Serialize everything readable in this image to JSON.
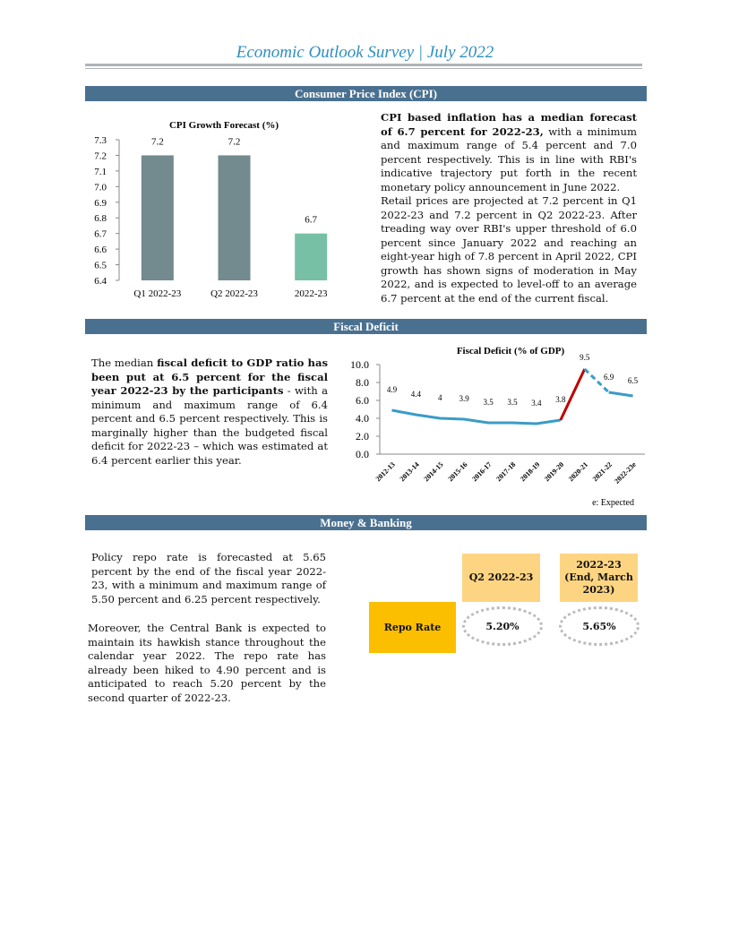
{
  "header": {
    "title": "Economic Outlook Survey | July 2022"
  },
  "sections": {
    "cpi": "Consumer Price Index (CPI)",
    "fiscal": "Fiscal Deficit",
    "money": "Money & Banking"
  },
  "cpi_text": {
    "p1_bold": "CPI based inflation has a median forecast of 6.7 percent for 2022-23,",
    "p1_rest": " with a minimum and maximum range of 5.4 percent and 7.0 percent respectively. This is in line with RBI's indicative trajectory put forth in the recent monetary policy announcement in June 2022.",
    "p2": "Retail prices are projected at 7.2 percent in Q1 2022-23 and 7.2 percent in Q2 2022-23. After treading way over RBI's upper threshold of 6.0 percent since January 2022 and reaching an eight-year high of 7.8 percent in April 2022, CPI growth has shown signs of moderation in May 2022, and is expected to level-off to an average 6.7 percent at the end of the current fiscal."
  },
  "fiscal_text": {
    "a": "The median ",
    "b": "fiscal deficit to GDP ratio has been put at 6.5 percent for the fiscal year 2022-23 by the participants",
    "c": " - with a minimum and maximum range of 6.4 percent and 6.5 percent respectively. This is marginally higher than the budgeted fiscal deficit for 2022-23 – which was estimated at 6.4 percent earlier this year."
  },
  "money_text": {
    "p1": "Policy repo rate is forecasted at 5.65 percent by the end of the fiscal year 2022-23, with a minimum and maximum range of 5.50 percent and 6.25 percent respectively.",
    "p2": "Moreover, the Central Bank is expected to maintain its hawkish stance throughout the calendar year 2022. The repo rate has already been hiked to 4.90 percent and is anticipated to reach 5.20 percent by the second quarter of 2022-23."
  },
  "repo_table": {
    "row_label": "Repo Rate",
    "col1": "Q2 2022-23",
    "col2": "2022-23 (End, March 2023)",
    "val1": "5.20%",
    "val2": "5.65%"
  },
  "chart_data": [
    {
      "type": "bar",
      "title": "CPI Growth Forecast (%)",
      "categories": [
        "Q1 2022-23",
        "Q2 2022-23",
        "2022-23"
      ],
      "values": [
        7.2,
        7.2,
        6.7
      ],
      "data_labels": [
        "7.2",
        "7.2",
        "6.7"
      ],
      "ylim": [
        6.4,
        7.3
      ],
      "yticks": [
        "6.4",
        "6.5",
        "6.6",
        "6.7",
        "6.8",
        "6.9",
        "7.0",
        "7.1",
        "7.2",
        "7.3"
      ],
      "colors": [
        "#738a8e",
        "#738a8e",
        "#77c0a6"
      ],
      "xlabel": "",
      "ylabel": ""
    },
    {
      "type": "line",
      "title": "Fiscal Deficit (% of GDP)",
      "categories": [
        "2012-13",
        "2013-14",
        "2014-15",
        "2015-16",
        "2016-17",
        "2017-18",
        "2018-19",
        "2019-20",
        "2020-21",
        "2021-22",
        "2022-23e"
      ],
      "values": [
        4.9,
        4.4,
        4,
        3.9,
        3.5,
        3.5,
        3.4,
        3.8,
        9.5,
        6.9,
        6.5
      ],
      "data_labels": [
        "4.9",
        "4.4",
        "4",
        "3.9",
        "3.5",
        "3.5",
        "3.4",
        "3.8",
        "9.5",
        "6.9",
        "6.5"
      ],
      "ylim": [
        0,
        10
      ],
      "yticks": [
        "0.0",
        "2.0",
        "4.0",
        "6.0",
        "8.0",
        "10.0"
      ],
      "note": "e: Expected",
      "colors": {
        "line": "#3a9cc8",
        "highlight": "#c00000"
      },
      "xlabel": "",
      "ylabel": ""
    }
  ]
}
